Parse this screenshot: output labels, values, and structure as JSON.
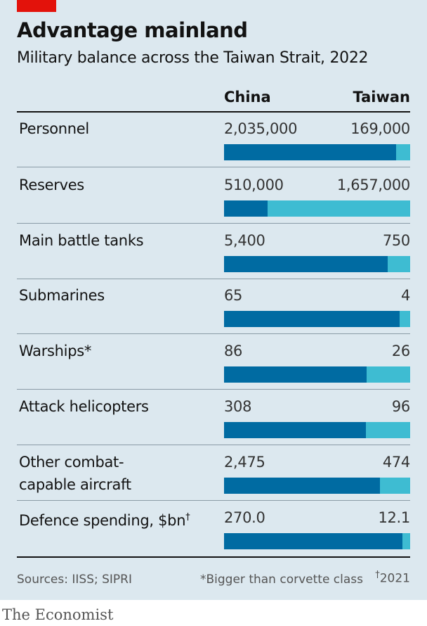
{
  "title": "Advantage mainland",
  "subtitle": "Military balance across the Taiwan Strait, 2022",
  "columns": {
    "china": "China",
    "taiwan": "Taiwan"
  },
  "colors": {
    "china": "#006ba2",
    "taiwan": "#3ebcd2",
    "accent": "#e3120b",
    "background": "#dce8ef"
  },
  "chart_data": {
    "type": "bar",
    "stacked": true,
    "normalized": true,
    "title": "Advantage mainland",
    "subtitle": "Military balance across the Taiwan Strait, 2022",
    "categories": [
      {
        "label": "Personnel",
        "label_lines": [
          "Personnel"
        ],
        "china": 2035000,
        "taiwan": 169000,
        "china_text": "2,035,000",
        "taiwan_text": "169,000"
      },
      {
        "label": "Reserves",
        "label_lines": [
          "Reserves"
        ],
        "china": 510000,
        "taiwan": 1657000,
        "china_text": "510,000",
        "taiwan_text": "1,657,000"
      },
      {
        "label": "Main battle tanks",
        "label_lines": [
          "Main battle tanks"
        ],
        "china": 5400,
        "taiwan": 750,
        "china_text": "5,400",
        "taiwan_text": "750"
      },
      {
        "label": "Submarines",
        "label_lines": [
          "Submarines"
        ],
        "china": 65,
        "taiwan": 4,
        "china_text": "65",
        "taiwan_text": "4"
      },
      {
        "label": "Warships*",
        "label_lines": [
          "Warships*"
        ],
        "china": 86,
        "taiwan": 26,
        "china_text": "86",
        "taiwan_text": "26"
      },
      {
        "label": "Attack helicopters",
        "label_lines": [
          "Attack helicopters"
        ],
        "china": 308,
        "taiwan": 96,
        "china_text": "308",
        "taiwan_text": "96"
      },
      {
        "label": "Other combat-capable aircraft",
        "label_lines": [
          "Other combat-",
          "capable aircraft"
        ],
        "china": 2475,
        "taiwan": 474,
        "china_text": "2,475",
        "taiwan_text": "474"
      },
      {
        "label": "Defence spending, $bn†",
        "label_lines": [
          "Defence spending, $bn"
        ],
        "label_sup": "†",
        "china": 270.0,
        "taiwan": 12.1,
        "china_text": "270.0",
        "taiwan_text": "12.1"
      }
    ],
    "series": [
      {
        "name": "China"
      },
      {
        "name": "Taiwan"
      }
    ]
  },
  "footer": {
    "source": "Sources: IISS; SIPRI",
    "note_warships": "*Bigger than corvette class",
    "note_2021_sup": "†",
    "note_2021": "2021",
    "brand": "The Economist"
  }
}
